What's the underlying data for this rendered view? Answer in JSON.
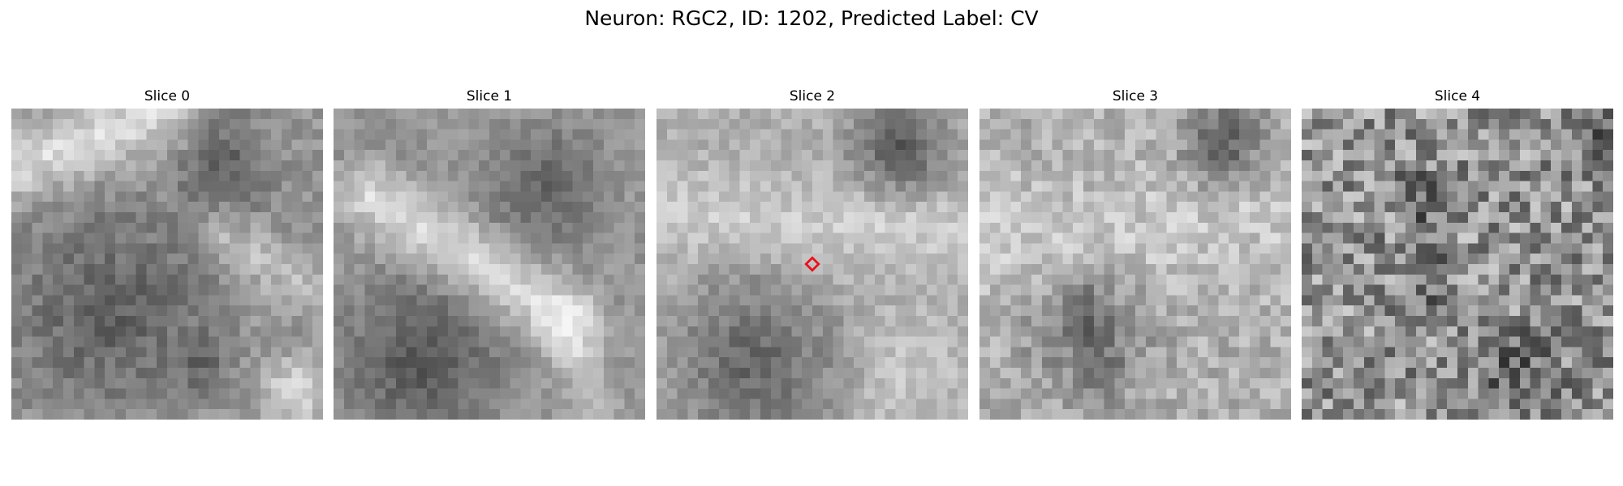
{
  "figure": {
    "title": "Neuron: RGC2, ID: 1202, Predicted Label: CV"
  },
  "panels": [
    {
      "title": "Slice 0",
      "image": "grayscale-em-patch",
      "marker": false
    },
    {
      "title": "Slice 1",
      "image": "grayscale-em-patch",
      "marker": false
    },
    {
      "title": "Slice 2",
      "image": "grayscale-em-patch",
      "marker": true,
      "marker_color": "#e8141c"
    },
    {
      "title": "Slice 3",
      "image": "grayscale-em-patch",
      "marker": false
    },
    {
      "title": "Slice 4",
      "image": "grayscale-em-patch",
      "marker": false
    }
  ]
}
